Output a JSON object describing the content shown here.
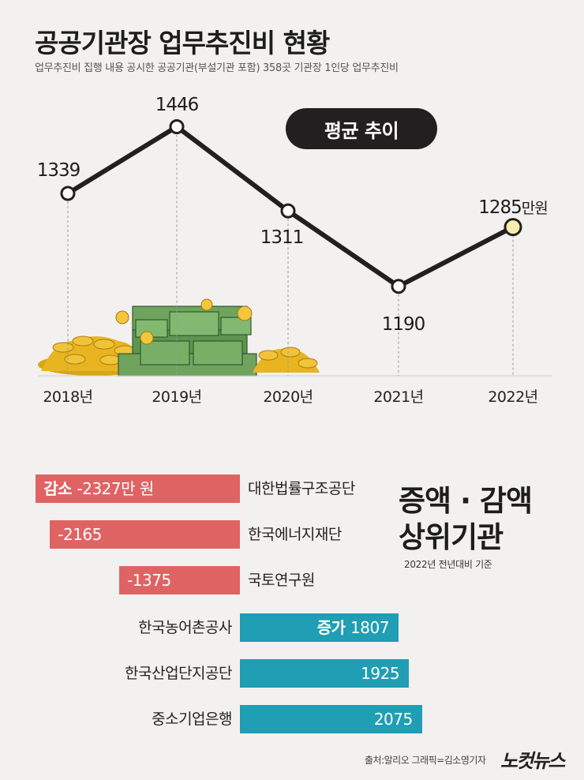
{
  "header": {
    "title": "공공기관장 업무추진비 현황",
    "subtitle": "업무추진비 집행 내용 공시한 공공기관(부설기관 포함) 358곳 기관장 1인당 업무추진비"
  },
  "trend": {
    "pill_label": "평균 추이",
    "unit": "만원"
  },
  "bars_section": {
    "title_line1": "증액 · 감액",
    "title_line2": "상위기관",
    "note": "2022년 전년대비 기준",
    "decrease_label": "감소",
    "increase_label": "증가",
    "first_neg_unit": "만 원"
  },
  "colors": {
    "decrease": "#e06364",
    "increase": "#1f9eb4",
    "line": "#231f20",
    "last_point": "#f7ecb0"
  },
  "chart_data": [
    {
      "type": "line",
      "title": "평균 추이",
      "categories": [
        "2018년",
        "2019년",
        "2020년",
        "2021년",
        "2022년"
      ],
      "values": [
        1339,
        1446,
        1311,
        1190,
        1285
      ],
      "value_labels": [
        "1339",
        "1446",
        "1311",
        "1190",
        "1285"
      ],
      "unit": "만원",
      "grid": false
    },
    {
      "type": "bar",
      "orientation": "horizontal",
      "categories": [
        "대한법률구조공단",
        "한국에너지재단",
        "국토연구원",
        "한국농어촌공사",
        "한국산업단지공단",
        "중소기업은행"
      ],
      "values": [
        -2327,
        -2165,
        -1375,
        1807,
        1925,
        2075
      ],
      "value_labels": [
        "-2327",
        "-2165",
        "-1375",
        "1807",
        "1925",
        "2075"
      ],
      "unit": "만 원"
    }
  ],
  "footer": {
    "source": "출처:알리오  그래픽=김소영기자",
    "logo": "노컷뉴스"
  }
}
